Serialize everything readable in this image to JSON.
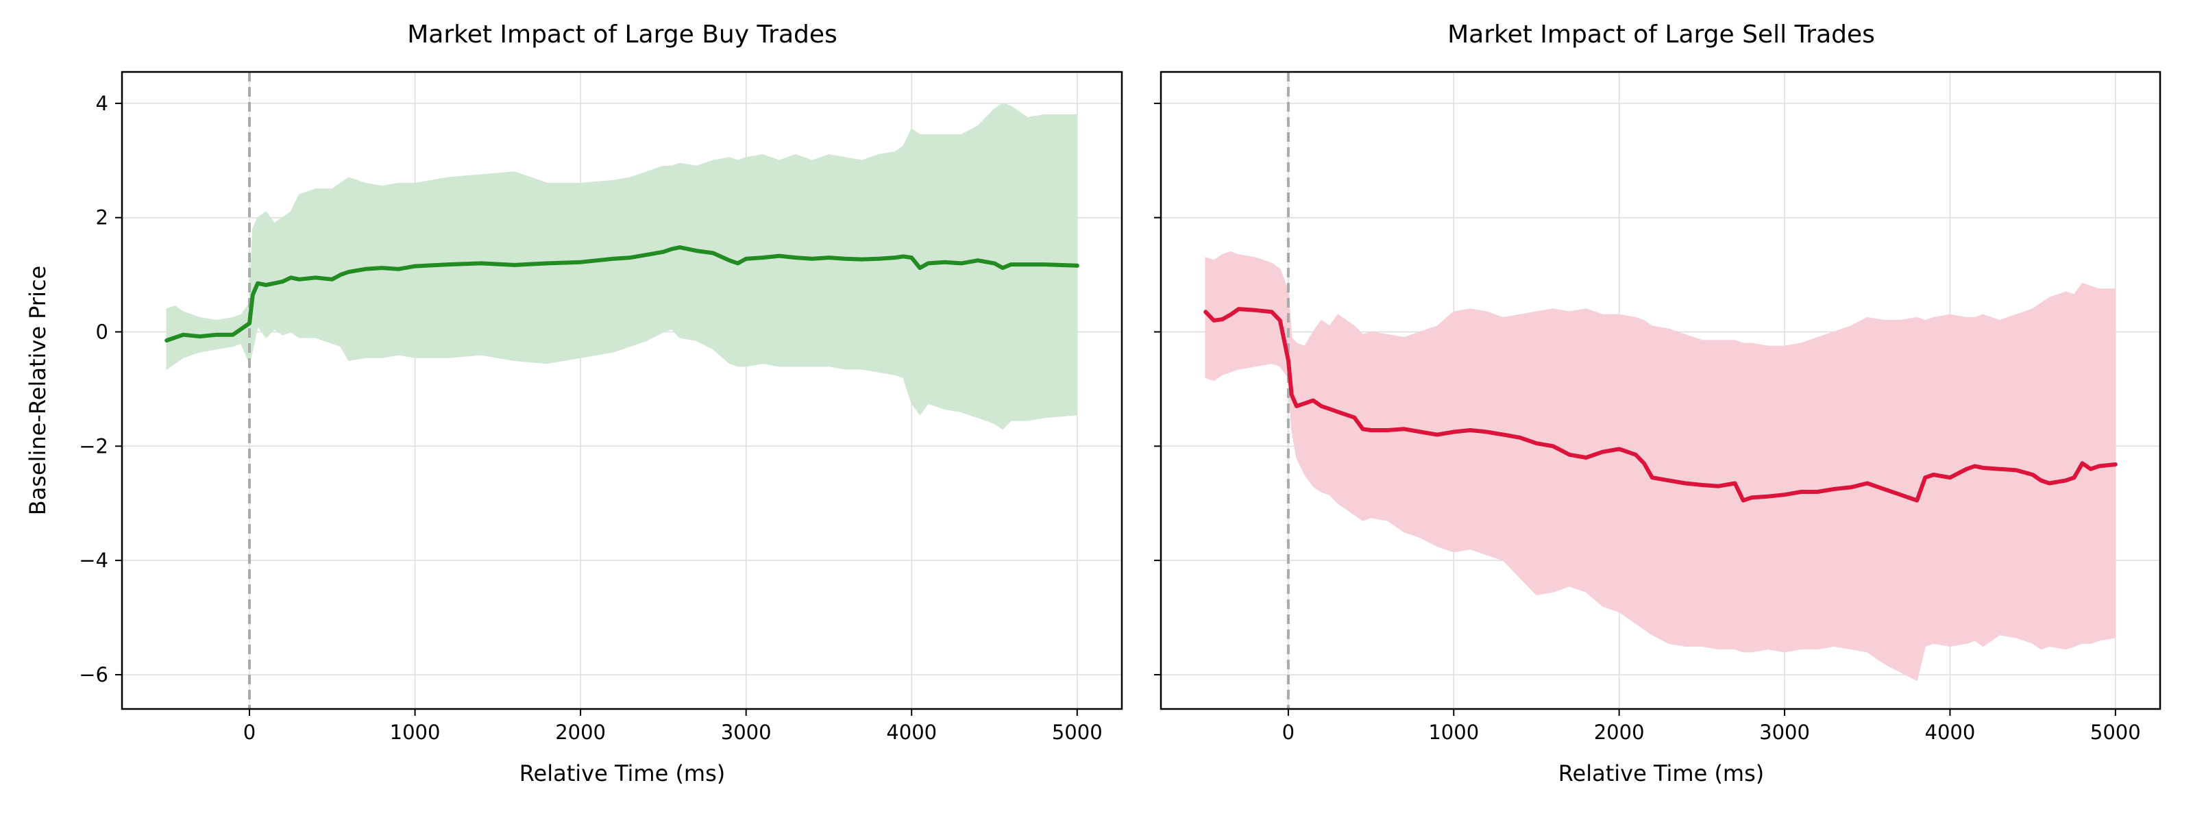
{
  "figure": {
    "ylabel": "Baseline-Relative Price",
    "colors": {
      "grid": "#dddddd",
      "zero_line": "#aaaaaa",
      "axes": "#000000"
    }
  },
  "chart_data": [
    {
      "type": "line",
      "title": "Market Impact of Large Buy Trades",
      "xlabel": "Relative Time (ms)",
      "ylabel": "Baseline-Relative Price",
      "xlim": [
        -770,
        5270
      ],
      "ylim": [
        -6.6,
        4.55
      ],
      "xticks": [
        0,
        1000,
        2000,
        3000,
        4000,
        5000
      ],
      "xtick_labels": [
        "0",
        "1000",
        "2000",
        "3000",
        "4000",
        "5000"
      ],
      "yticks": [
        4,
        2,
        0,
        -2,
        -4,
        -6
      ],
      "ytick_labels": [
        "4",
        "2",
        "0",
        "−2",
        "−4",
        "−6"
      ],
      "grid": true,
      "event_line_x": 0,
      "color": "#228b22",
      "band_color": "#d0e7d2",
      "series": {
        "x": [
          -500,
          -450,
          -400,
          -300,
          -200,
          -100,
          -50,
          0,
          20,
          50,
          100,
          150,
          200,
          250,
          300,
          400,
          500,
          550,
          600,
          700,
          800,
          900,
          1000,
          1200,
          1400,
          1600,
          1800,
          2000,
          2200,
          2300,
          2400,
          2500,
          2550,
          2600,
          2700,
          2800,
          2900,
          2950,
          3000,
          3100,
          3200,
          3300,
          3400,
          3500,
          3600,
          3700,
          3800,
          3900,
          3950,
          4000,
          4050,
          4100,
          4200,
          4300,
          4400,
          4500,
          4550,
          4600,
          4700,
          4800,
          5000
        ],
        "mean": [
          -0.15,
          -0.1,
          -0.05,
          -0.08,
          -0.05,
          -0.05,
          0.05,
          0.15,
          0.65,
          0.85,
          0.82,
          0.85,
          0.88,
          0.95,
          0.92,
          0.95,
          0.92,
          1.0,
          1.05,
          1.1,
          1.12,
          1.1,
          1.15,
          1.18,
          1.2,
          1.17,
          1.2,
          1.22,
          1.28,
          1.3,
          1.35,
          1.4,
          1.45,
          1.48,
          1.42,
          1.38,
          1.25,
          1.2,
          1.28,
          1.3,
          1.33,
          1.3,
          1.28,
          1.3,
          1.28,
          1.27,
          1.28,
          1.3,
          1.32,
          1.3,
          1.12,
          1.2,
          1.22,
          1.2,
          1.25,
          1.2,
          1.12,
          1.18,
          1.18,
          1.18,
          1.16
        ],
        "upper": [
          0.4,
          0.45,
          0.35,
          0.25,
          0.2,
          0.25,
          0.3,
          0.5,
          1.8,
          2.0,
          2.1,
          1.9,
          2.0,
          2.1,
          2.4,
          2.5,
          2.5,
          2.6,
          2.7,
          2.6,
          2.55,
          2.6,
          2.6,
          2.7,
          2.75,
          2.8,
          2.6,
          2.6,
          2.65,
          2.7,
          2.8,
          2.9,
          2.9,
          2.95,
          2.9,
          3.0,
          3.05,
          3.0,
          3.05,
          3.1,
          3.0,
          3.1,
          3.0,
          3.1,
          3.05,
          3.0,
          3.1,
          3.15,
          3.25,
          3.55,
          3.45,
          3.45,
          3.45,
          3.45,
          3.6,
          3.9,
          4.0,
          3.95,
          3.75,
          3.8,
          3.8
        ],
        "lower": [
          -0.65,
          -0.55,
          -0.45,
          -0.35,
          -0.3,
          -0.25,
          -0.2,
          -0.55,
          -0.3,
          0.1,
          -0.1,
          0.05,
          -0.05,
          0.0,
          -0.1,
          -0.1,
          -0.2,
          -0.25,
          -0.5,
          -0.45,
          -0.45,
          -0.4,
          -0.45,
          -0.45,
          -0.4,
          -0.5,
          -0.55,
          -0.45,
          -0.35,
          -0.25,
          -0.15,
          0.0,
          0.05,
          -0.1,
          -0.15,
          -0.3,
          -0.55,
          -0.6,
          -0.6,
          -0.55,
          -0.6,
          -0.6,
          -0.6,
          -0.6,
          -0.65,
          -0.65,
          -0.7,
          -0.75,
          -0.8,
          -1.25,
          -1.45,
          -1.25,
          -1.35,
          -1.4,
          -1.5,
          -1.6,
          -1.7,
          -1.55,
          -1.55,
          -1.5,
          -1.45
        ]
      }
    },
    {
      "type": "line",
      "title": "Market Impact of Large Sell Trades",
      "xlabel": "Relative Time (ms)",
      "ylabel": "",
      "xlim": [
        -770,
        5270
      ],
      "ylim": [
        -6.6,
        4.55
      ],
      "xticks": [
        0,
        1000,
        2000,
        3000,
        4000,
        5000
      ],
      "xtick_labels": [
        "0",
        "1000",
        "2000",
        "3000",
        "4000",
        "5000"
      ],
      "yticks": [
        4,
        2,
        0,
        -2,
        -4,
        -6
      ],
      "ytick_labels": [],
      "grid": true,
      "event_line_x": 0,
      "color": "#dc143c",
      "band_color": "#f7cfd7",
      "series": {
        "x": [
          -500,
          -450,
          -400,
          -350,
          -300,
          -200,
          -100,
          -50,
          0,
          20,
          50,
          100,
          150,
          200,
          250,
          300,
          400,
          450,
          500,
          600,
          700,
          800,
          900,
          1000,
          1100,
          1200,
          1300,
          1400,
          1500,
          1600,
          1700,
          1800,
          1900,
          2000,
          2100,
          2150,
          2200,
          2300,
          2400,
          2500,
          2600,
          2700,
          2750,
          2800,
          2900,
          3000,
          3100,
          3200,
          3300,
          3400,
          3500,
          3600,
          3700,
          3800,
          3850,
          3900,
          4000,
          4100,
          4150,
          4200,
          4300,
          4400,
          4500,
          4550,
          4600,
          4700,
          4750,
          4800,
          4850,
          4900,
          5000
        ],
        "mean": [
          0.35,
          0.2,
          0.22,
          0.3,
          0.4,
          0.38,
          0.35,
          0.2,
          -0.5,
          -1.1,
          -1.3,
          -1.25,
          -1.2,
          -1.3,
          -1.35,
          -1.4,
          -1.5,
          -1.7,
          -1.72,
          -1.72,
          -1.7,
          -1.75,
          -1.8,
          -1.75,
          -1.72,
          -1.75,
          -1.8,
          -1.85,
          -1.95,
          -2.0,
          -2.15,
          -2.2,
          -2.1,
          -2.05,
          -2.15,
          -2.3,
          -2.55,
          -2.6,
          -2.65,
          -2.68,
          -2.7,
          -2.65,
          -2.95,
          -2.9,
          -2.88,
          -2.85,
          -2.8,
          -2.8,
          -2.75,
          -2.72,
          -2.65,
          -2.75,
          -2.85,
          -2.95,
          -2.55,
          -2.5,
          -2.55,
          -2.4,
          -2.35,
          -2.38,
          -2.4,
          -2.42,
          -2.5,
          -2.6,
          -2.65,
          -2.6,
          -2.55,
          -2.3,
          -2.4,
          -2.35,
          -2.32
        ],
        "upper": [
          1.3,
          1.25,
          1.35,
          1.4,
          1.35,
          1.3,
          1.2,
          1.1,
          0.7,
          -0.1,
          -0.2,
          -0.25,
          0.0,
          0.2,
          0.1,
          0.3,
          0.1,
          -0.05,
          0.0,
          -0.05,
          -0.1,
          0.0,
          0.1,
          0.35,
          0.4,
          0.35,
          0.25,
          0.3,
          0.35,
          0.4,
          0.35,
          0.4,
          0.3,
          0.3,
          0.25,
          0.2,
          0.1,
          0.05,
          -0.05,
          -0.15,
          -0.15,
          -0.15,
          -0.2,
          -0.2,
          -0.25,
          -0.25,
          -0.2,
          -0.1,
          0.0,
          0.1,
          0.25,
          0.2,
          0.2,
          0.25,
          0.2,
          0.25,
          0.3,
          0.25,
          0.25,
          0.3,
          0.2,
          0.3,
          0.4,
          0.5,
          0.6,
          0.7,
          0.65,
          0.85,
          0.8,
          0.75,
          0.75
        ],
        "lower": [
          -0.8,
          -0.85,
          -0.75,
          -0.7,
          -0.65,
          -0.6,
          -0.55,
          -0.6,
          -0.8,
          -1.7,
          -2.2,
          -2.5,
          -2.7,
          -2.8,
          -2.85,
          -3.0,
          -3.2,
          -3.3,
          -3.25,
          -3.3,
          -3.5,
          -3.6,
          -3.75,
          -3.85,
          -3.8,
          -3.9,
          -4.0,
          -4.3,
          -4.6,
          -4.55,
          -4.45,
          -4.55,
          -4.8,
          -4.9,
          -5.1,
          -5.2,
          -5.3,
          -5.45,
          -5.5,
          -5.5,
          -5.55,
          -5.55,
          -5.6,
          -5.6,
          -5.55,
          -5.6,
          -5.55,
          -5.55,
          -5.5,
          -5.55,
          -5.6,
          -5.8,
          -5.95,
          -6.1,
          -5.5,
          -5.45,
          -5.5,
          -5.45,
          -5.4,
          -5.5,
          -5.3,
          -5.35,
          -5.45,
          -5.55,
          -5.5,
          -5.55,
          -5.5,
          -5.45,
          -5.45,
          -5.4,
          -5.35
        ]
      }
    }
  ]
}
